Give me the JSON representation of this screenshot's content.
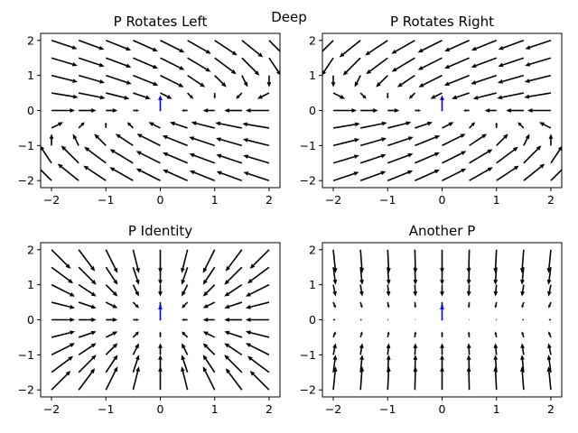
{
  "figure": {
    "suptitle": "Deep"
  },
  "chart_data": [
    {
      "type": "quiver",
      "title": "P Rotates Left",
      "xlim": [
        -2.2,
        2.2
      ],
      "ylim": [
        -2.2,
        2.2
      ],
      "xticks": [
        -2,
        -1,
        0,
        1,
        2
      ],
      "yticks": [
        -2,
        -1,
        0,
        1,
        2
      ],
      "xtick_labels": [
        "−2",
        "−1",
        "0",
        "1",
        "2"
      ],
      "ytick_labels": [
        "−2",
        "−1",
        "0",
        "1",
        "2"
      ],
      "grid": [
        -2.0,
        -1.5,
        -1.0,
        -0.5,
        0.0,
        0.5,
        1.0,
        1.5,
        2.0
      ],
      "field": {
        "u": "-x + 2*y",
        "v": "-y"
      },
      "arrow_color": "#000000",
      "highlight": {
        "x": 0,
        "y": 0,
        "u": 0,
        "v": 1,
        "color": "#0000ff"
      },
      "grid_on": false
    },
    {
      "type": "quiver",
      "title": "P Rotates Right",
      "xlim": [
        -2.2,
        2.2
      ],
      "ylim": [
        -2.2,
        2.2
      ],
      "xticks": [
        -2,
        -1,
        0,
        1,
        2
      ],
      "yticks": [
        -2,
        -1,
        0,
        1,
        2
      ],
      "xtick_labels": [
        "−2",
        "−1",
        "0",
        "1",
        "2"
      ],
      "ytick_labels": [
        "−2",
        "−1",
        "0",
        "1",
        "2"
      ],
      "grid": [
        -2.0,
        -1.5,
        -1.0,
        -0.5,
        0.0,
        0.5,
        1.0,
        1.5,
        2.0
      ],
      "field": {
        "u": "-x - 2*y",
        "v": "-y"
      },
      "arrow_color": "#000000",
      "highlight": {
        "x": 0,
        "y": 0,
        "u": 0,
        "v": 1,
        "color": "#0000ff"
      },
      "grid_on": false
    },
    {
      "type": "quiver",
      "title": "P Identity",
      "xlim": [
        -2.2,
        2.2
      ],
      "ylim": [
        -2.2,
        2.2
      ],
      "xticks": [
        -2,
        -1,
        0,
        1,
        2
      ],
      "yticks": [
        -2,
        -1,
        0,
        1,
        2
      ],
      "xtick_labels": [
        "−2",
        "−1",
        "0",
        "1",
        "2"
      ],
      "ytick_labels": [
        "−2",
        "−1",
        "0",
        "1",
        "2"
      ],
      "grid": [
        -2.0,
        -1.5,
        -1.0,
        -0.5,
        0.0,
        0.5,
        1.0,
        1.5,
        2.0
      ],
      "field": {
        "u": "-x",
        "v": "-y"
      },
      "arrow_color": "#000000",
      "highlight": {
        "x": 0,
        "y": 0,
        "u": 0,
        "v": 1,
        "color": "#0000ff"
      },
      "grid_on": false
    },
    {
      "type": "quiver",
      "title": "Another P",
      "xlim": [
        -2.2,
        2.2
      ],
      "ylim": [
        -2.2,
        2.2
      ],
      "xticks": [
        -2,
        -1,
        0,
        1,
        2
      ],
      "yticks": [
        -2,
        -1,
        0,
        1,
        2
      ],
      "xtick_labels": [
        "−2",
        "−1",
        "0",
        "1",
        "2"
      ],
      "ytick_labels": [
        "−2",
        "−1",
        "0",
        "1",
        "2"
      ],
      "grid": [
        -2.0,
        -1.5,
        -1.0,
        -0.5,
        0.0,
        0.5,
        1.0,
        1.5,
        2.0
      ],
      "field": {
        "u": "-0.1*x",
        "v": "-y"
      },
      "arrow_color": "#000000",
      "highlight": {
        "x": 0,
        "y": 0,
        "u": 0,
        "v": 1,
        "color": "#0000ff"
      },
      "grid_on": false
    }
  ]
}
